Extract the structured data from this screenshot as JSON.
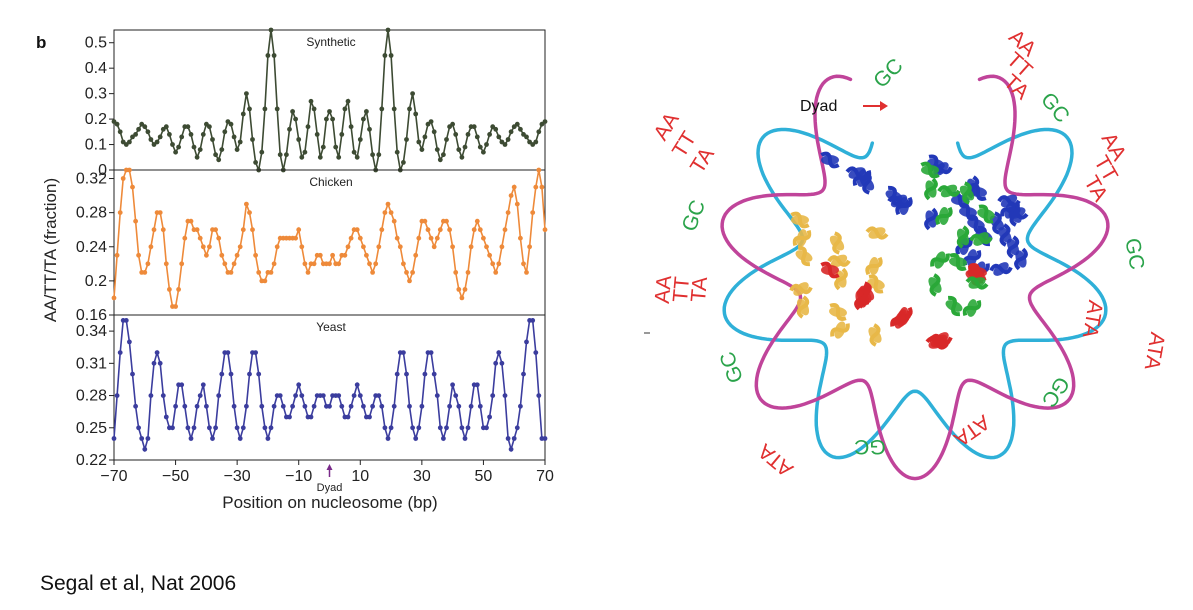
{
  "panel_letter": "b",
  "citation": "Segal et al, Nat 2006",
  "chart_data": {
    "type": "line",
    "xlabel": "Position on nucleosome (bp)",
    "ylabel": "AA/TT/TA (fraction)",
    "xlim": [
      -70,
      70
    ],
    "xticks": [
      -70,
      -50,
      -30,
      -10,
      10,
      30,
      50,
      70
    ],
    "xtick_labels": [
      "−70",
      "−50",
      "−30",
      "−10",
      "10",
      "30",
      "50",
      "70"
    ],
    "dyad_marker": {
      "x": 0,
      "label": "Dyad"
    },
    "x": [
      -70,
      -69,
      -68,
      -67,
      -66,
      -65,
      -64,
      -63,
      -62,
      -61,
      -60,
      -59,
      -58,
      -57,
      -56,
      -55,
      -54,
      -53,
      -52,
      -51,
      -50,
      -49,
      -48,
      -47,
      -46,
      -45,
      -44,
      -43,
      -42,
      -41,
      -40,
      -39,
      -38,
      -37,
      -36,
      -35,
      -34,
      -33,
      -32,
      -31,
      -30,
      -29,
      -28,
      -27,
      -26,
      -25,
      -24,
      -23,
      -22,
      -21,
      -20,
      -19,
      -18,
      -17,
      -16,
      -15,
      -14,
      -13,
      -12,
      -11,
      -10,
      -9,
      -8,
      -7,
      -6,
      -5,
      -4,
      -3,
      -2,
      -1,
      0,
      1,
      2,
      3,
      4,
      5,
      6,
      7,
      8,
      9,
      10,
      11,
      12,
      13,
      14,
      15,
      16,
      17,
      18,
      19,
      20,
      21,
      22,
      23,
      24,
      25,
      26,
      27,
      28,
      29,
      30,
      31,
      32,
      33,
      34,
      35,
      36,
      37,
      38,
      39,
      40,
      41,
      42,
      43,
      44,
      45,
      46,
      47,
      48,
      49,
      50,
      51,
      52,
      53,
      54,
      55,
      56,
      57,
      58,
      59,
      60,
      61,
      62,
      63,
      64,
      65,
      66,
      67,
      68,
      69,
      70
    ],
    "panels": [
      {
        "name": "Synthetic",
        "color": "#3d4b33",
        "ylim": [
          0,
          0.55
        ],
        "yticks": [
          0,
          0.1,
          0.2,
          0.3,
          0.4,
          0.5
        ],
        "ytick_labels": [
          "0",
          "0.1",
          "0.2",
          "0.3",
          "0.4",
          "0.5"
        ],
        "values": [
          0.19,
          0.18,
          0.15,
          0.11,
          0.1,
          0.11,
          0.13,
          0.14,
          0.16,
          0.18,
          0.17,
          0.15,
          0.12,
          0.1,
          0.11,
          0.13,
          0.16,
          0.17,
          0.14,
          0.1,
          0.07,
          0.09,
          0.13,
          0.17,
          0.17,
          0.14,
          0.09,
          0.05,
          0.08,
          0.14,
          0.18,
          0.17,
          0.12,
          0.06,
          0.04,
          0.08,
          0.15,
          0.19,
          0.18,
          0.13,
          0.08,
          0.11,
          0.22,
          0.3,
          0.24,
          0.12,
          0.03,
          0.0,
          0.07,
          0.24,
          0.45,
          0.55,
          0.45,
          0.24,
          0.06,
          0.0,
          0.06,
          0.16,
          0.23,
          0.2,
          0.12,
          0.05,
          0.07,
          0.17,
          0.27,
          0.24,
          0.14,
          0.05,
          0.09,
          0.2,
          0.23,
          0.2,
          0.09,
          0.05,
          0.14,
          0.24,
          0.27,
          0.17,
          0.07,
          0.05,
          0.12,
          0.2,
          0.23,
          0.16,
          0.06,
          0.0,
          0.06,
          0.24,
          0.45,
          0.55,
          0.45,
          0.24,
          0.07,
          0.0,
          0.03,
          0.12,
          0.24,
          0.3,
          0.22,
          0.11,
          0.08,
          0.13,
          0.18,
          0.19,
          0.15,
          0.08,
          0.04,
          0.06,
          0.12,
          0.17,
          0.18,
          0.14,
          0.08,
          0.05,
          0.09,
          0.14,
          0.17,
          0.17,
          0.13,
          0.09,
          0.07,
          0.1,
          0.14,
          0.17,
          0.16,
          0.13,
          0.11,
          0.1,
          0.12,
          0.15,
          0.17,
          0.18,
          0.16,
          0.14,
          0.13,
          0.11,
          0.1,
          0.11,
          0.15,
          0.18,
          0.19
        ]
      },
      {
        "name": "Chicken",
        "color": "#ee8a3a",
        "ylim": [
          0.16,
          0.33
        ],
        "yticks": [
          0.16,
          0.2,
          0.24,
          0.28,
          0.32
        ],
        "ytick_labels": [
          "0.16",
          "0.2",
          "0.24",
          "0.28",
          "0.32"
        ],
        "values": [
          0.18,
          0.23,
          0.28,
          0.32,
          0.33,
          0.33,
          0.31,
          0.27,
          0.23,
          0.21,
          0.21,
          0.22,
          0.24,
          0.26,
          0.28,
          0.28,
          0.26,
          0.22,
          0.19,
          0.17,
          0.17,
          0.19,
          0.22,
          0.25,
          0.27,
          0.27,
          0.26,
          0.26,
          0.25,
          0.24,
          0.23,
          0.24,
          0.26,
          0.26,
          0.25,
          0.23,
          0.22,
          0.21,
          0.21,
          0.22,
          0.23,
          0.24,
          0.26,
          0.29,
          0.28,
          0.26,
          0.23,
          0.21,
          0.2,
          0.2,
          0.21,
          0.21,
          0.22,
          0.24,
          0.25,
          0.25,
          0.25,
          0.25,
          0.25,
          0.25,
          0.26,
          0.24,
          0.22,
          0.21,
          0.22,
          0.22,
          0.23,
          0.23,
          0.22,
          0.22,
          0.22,
          0.23,
          0.22,
          0.22,
          0.23,
          0.23,
          0.24,
          0.25,
          0.26,
          0.26,
          0.25,
          0.24,
          0.23,
          0.22,
          0.21,
          0.22,
          0.24,
          0.26,
          0.28,
          0.29,
          0.28,
          0.27,
          0.25,
          0.24,
          0.22,
          0.21,
          0.2,
          0.21,
          0.23,
          0.25,
          0.27,
          0.27,
          0.26,
          0.25,
          0.24,
          0.25,
          0.26,
          0.27,
          0.27,
          0.26,
          0.24,
          0.21,
          0.19,
          0.18,
          0.19,
          0.21,
          0.24,
          0.26,
          0.27,
          0.26,
          0.25,
          0.24,
          0.23,
          0.22,
          0.21,
          0.22,
          0.24,
          0.26,
          0.28,
          0.3,
          0.31,
          0.29,
          0.25,
          0.22,
          0.21,
          0.24,
          0.28,
          0.31,
          0.33,
          0.31,
          0.26
        ]
      },
      {
        "name": "Yeast",
        "color": "#3b3d9e",
        "ylim": [
          0.22,
          0.355
        ],
        "yticks": [
          0.22,
          0.25,
          0.28,
          0.31,
          0.34
        ],
        "ytick_labels": [
          "0.22",
          "0.25",
          "0.28",
          "0.31",
          "0.34"
        ],
        "values": [
          0.24,
          0.28,
          0.32,
          0.35,
          0.35,
          0.33,
          0.3,
          0.27,
          0.25,
          0.24,
          0.23,
          0.24,
          0.28,
          0.31,
          0.32,
          0.31,
          0.28,
          0.26,
          0.25,
          0.25,
          0.27,
          0.29,
          0.29,
          0.27,
          0.25,
          0.24,
          0.25,
          0.27,
          0.28,
          0.29,
          0.27,
          0.25,
          0.24,
          0.25,
          0.28,
          0.3,
          0.32,
          0.32,
          0.3,
          0.27,
          0.25,
          0.24,
          0.25,
          0.27,
          0.3,
          0.32,
          0.32,
          0.3,
          0.27,
          0.25,
          0.24,
          0.25,
          0.27,
          0.28,
          0.28,
          0.27,
          0.26,
          0.26,
          0.27,
          0.28,
          0.29,
          0.28,
          0.27,
          0.26,
          0.26,
          0.27,
          0.28,
          0.28,
          0.28,
          0.27,
          0.27,
          0.28,
          0.28,
          0.28,
          0.27,
          0.26,
          0.26,
          0.27,
          0.28,
          0.29,
          0.28,
          0.27,
          0.26,
          0.26,
          0.27,
          0.28,
          0.28,
          0.27,
          0.25,
          0.24,
          0.25,
          0.27,
          0.3,
          0.32,
          0.32,
          0.3,
          0.27,
          0.25,
          0.24,
          0.25,
          0.27,
          0.3,
          0.32,
          0.32,
          0.3,
          0.28,
          0.25,
          0.24,
          0.25,
          0.27,
          0.29,
          0.28,
          0.27,
          0.25,
          0.24,
          0.25,
          0.27,
          0.29,
          0.29,
          0.27,
          0.25,
          0.25,
          0.26,
          0.28,
          0.31,
          0.32,
          0.31,
          0.28,
          0.24,
          0.23,
          0.24,
          0.25,
          0.27,
          0.3,
          0.33,
          0.35,
          0.35,
          0.32,
          0.28,
          0.24,
          0.24
        ]
      }
    ]
  },
  "diagram": {
    "dyad_label": "Dyad",
    "motif_colors": {
      "AT": "#e03030",
      "GC": "#2aa34a"
    },
    "motifs": [
      {
        "text": "AA",
        "group": "AT"
      },
      {
        "text": "TT",
        "group": "AT"
      },
      {
        "text": "TA",
        "group": "AT"
      },
      {
        "text": "GC",
        "group": "GC"
      },
      {
        "text": "GC",
        "group": "GC"
      },
      {
        "text": "AA",
        "group": "AT"
      },
      {
        "text": "TT",
        "group": "AT"
      },
      {
        "text": "TA",
        "group": "AT"
      },
      {
        "text": "GC",
        "group": "GC"
      },
      {
        "text": "ATA",
        "group": "AT"
      },
      {
        "text": "ATA",
        "group": "AT"
      },
      {
        "text": "GC",
        "group": "GC"
      },
      {
        "text": "ATA",
        "group": "AT"
      },
      {
        "text": "GC",
        "group": "GC"
      },
      {
        "text": "ATA",
        "group": "AT"
      },
      {
        "text": "GC",
        "group": "GC"
      },
      {
        "text": "AA",
        "group": "AT"
      },
      {
        "text": "TT",
        "group": "AT"
      },
      {
        "text": "TA",
        "group": "AT"
      },
      {
        "text": "GC",
        "group": "GC"
      },
      {
        "text": "AA",
        "group": "AT"
      },
      {
        "text": "TT",
        "group": "AT"
      },
      {
        "text": "TA",
        "group": "AT"
      }
    ],
    "strand_colors": [
      "#2fb0d8",
      "#c0449a"
    ],
    "protein_colors": [
      "#2238b8",
      "#e8b848",
      "#d82828",
      "#2aa838"
    ]
  }
}
